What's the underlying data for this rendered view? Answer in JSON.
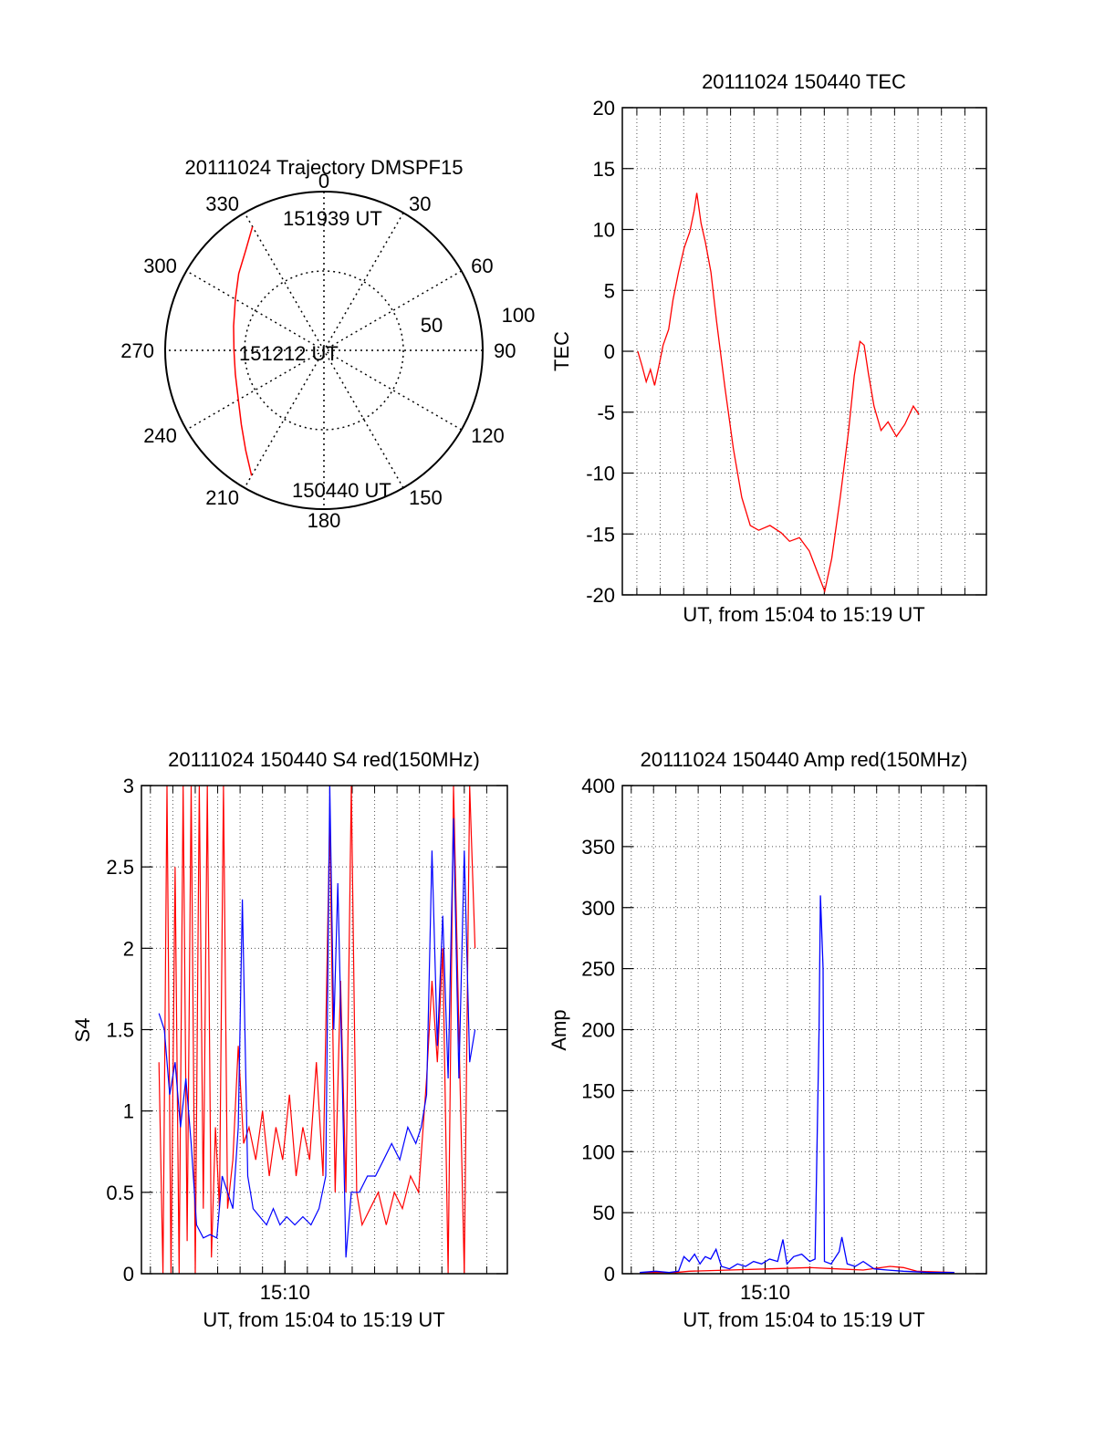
{
  "figure": {
    "colors": {
      "red": "#ff0000",
      "blue": "#0000ff",
      "axis": "#000000",
      "grid": "#000000"
    }
  },
  "chart_data": [
    {
      "id": "trajectory",
      "type": "polar",
      "title": "20111024 Trajectory DMSPF15",
      "angle_labels": [
        "0",
        "30",
        "60",
        "90",
        "120",
        "150",
        "180",
        "210",
        "240",
        "270",
        "300",
        "330"
      ],
      "radial_labels": [
        "50",
        "100"
      ],
      "annotations": [
        "151939 UT",
        "151212 UT",
        "150440 UT"
      ],
      "trajectory": [
        {
          "az": 210,
          "zen": 82
        },
        {
          "az": 218,
          "zen": 72
        },
        {
          "az": 228,
          "zen": 63
        },
        {
          "az": 240,
          "zen": 56
        },
        {
          "az": 255,
          "zen": 52
        },
        {
          "az": 270,
          "zen": 51
        },
        {
          "az": 285,
          "zen": 53
        },
        {
          "az": 300,
          "zen": 58
        },
        {
          "az": 312,
          "zen": 65
        },
        {
          "az": 322,
          "zen": 72
        },
        {
          "az": 330,
          "zen": 81
        }
      ],
      "series_color": "#ff0000"
    },
    {
      "id": "tec",
      "type": "line",
      "title": "20111024 150440 TEC",
      "xlabel": "UT, from 15:04 to 15:19 UT",
      "ylabel": "TEC",
      "xlim": [
        15.073,
        15.332
      ],
      "ylim": [
        -20,
        20
      ],
      "yticks": [
        "-20",
        "-15",
        "-10",
        "-5",
        "0",
        "5",
        "10",
        "15",
        "20"
      ],
      "ytick_values": [
        -20,
        -15,
        -10,
        -5,
        0,
        5,
        10,
        15,
        20
      ],
      "series": [
        {
          "color": "#ff0000",
          "points": [
            [
              15.084,
              0
            ],
            [
              15.087,
              -1.2
            ],
            [
              15.09,
              -2.5
            ],
            [
              15.093,
              -1.5
            ],
            [
              15.096,
              -2.8
            ],
            [
              15.099,
              -1.2
            ],
            [
              15.102,
              0.5
            ],
            [
              15.106,
              1.8
            ],
            [
              15.109,
              4.2
            ],
            [
              15.113,
              6.5
            ],
            [
              15.117,
              8.5
            ],
            [
              15.121,
              9.8
            ],
            [
              15.124,
              11.5
            ],
            [
              15.126,
              13.0
            ],
            [
              15.129,
              10.5
            ],
            [
              15.132,
              9.0
            ],
            [
              15.136,
              6.5
            ],
            [
              15.14,
              2.5
            ],
            [
              15.146,
              -3.0
            ],
            [
              15.152,
              -8.0
            ],
            [
              15.158,
              -12.0
            ],
            [
              15.164,
              -14.3
            ],
            [
              15.17,
              -14.7
            ],
            [
              15.178,
              -14.3
            ],
            [
              15.186,
              -14.9
            ],
            [
              15.192,
              -15.6
            ],
            [
              15.199,
              -15.3
            ],
            [
              15.206,
              -16.4
            ],
            [
              15.212,
              -18.2
            ],
            [
              15.217,
              -19.7
            ],
            [
              15.222,
              -17.0
            ],
            [
              15.228,
              -12.0
            ],
            [
              15.234,
              -6.5
            ],
            [
              15.238,
              -2.0
            ],
            [
              15.242,
              0.8
            ],
            [
              15.245,
              0.5
            ],
            [
              15.248,
              -1.8
            ],
            [
              15.252,
              -4.5
            ],
            [
              15.257,
              -6.5
            ],
            [
              15.262,
              -5.8
            ],
            [
              15.268,
              -7.0
            ],
            [
              15.274,
              -6.0
            ],
            [
              15.28,
              -4.5
            ],
            [
              15.284,
              -5.2
            ]
          ]
        }
      ]
    },
    {
      "id": "s4",
      "type": "line",
      "title": "20111024 150440 S4 red(150MHz)",
      "xlabel": "UT, from 15:04 to 15:19 UT",
      "ylabel": "S4",
      "xlim": [
        15.06,
        15.332
      ],
      "ylim": [
        0,
        3
      ],
      "yticks": [
        "0",
        "0.5",
        "1",
        "1.5",
        "2",
        "2.5",
        "3"
      ],
      "ytick_values": [
        0,
        0.5,
        1,
        1.5,
        2,
        2.5,
        3
      ],
      "xticks": [
        "15:10"
      ],
      "xtick_values": [
        15.1667
      ],
      "series": [
        {
          "color": "#ff0000",
          "points": [
            [
              15.073,
              1.3
            ],
            [
              15.076,
              0
            ],
            [
              15.079,
              3
            ],
            [
              15.082,
              0
            ],
            [
              15.085,
              2.5
            ],
            [
              15.088,
              0
            ],
            [
              15.091,
              3
            ],
            [
              15.094,
              0.2
            ],
            [
              15.097,
              3
            ],
            [
              15.1,
              0
            ],
            [
              15.103,
              3
            ],
            [
              15.106,
              0.4
            ],
            [
              15.109,
              3
            ],
            [
              15.112,
              0.1
            ],
            [
              15.115,
              0.9
            ],
            [
              15.118,
              0.4
            ],
            [
              15.121,
              3
            ],
            [
              15.124,
              0.4
            ],
            [
              15.128,
              0.7
            ],
            [
              15.132,
              1.4
            ],
            [
              15.136,
              0.8
            ],
            [
              15.14,
              0.9
            ],
            [
              15.145,
              0.7
            ],
            [
              15.15,
              1.0
            ],
            [
              15.155,
              0.6
            ],
            [
              15.16,
              0.9
            ],
            [
              15.165,
              0.7
            ],
            [
              15.17,
              1.1
            ],
            [
              15.175,
              0.6
            ],
            [
              15.18,
              0.9
            ],
            [
              15.185,
              0.7
            ],
            [
              15.19,
              1.3
            ],
            [
              15.195,
              0.6
            ],
            [
              15.2,
              2.8
            ],
            [
              15.204,
              0.5
            ],
            [
              15.208,
              1.8
            ],
            [
              15.212,
              0.5
            ],
            [
              15.216,
              3
            ],
            [
              15.22,
              0.5
            ],
            [
              15.224,
              0.3
            ],
            [
              15.23,
              0.4
            ],
            [
              15.236,
              0.5
            ],
            [
              15.242,
              0.3
            ],
            [
              15.248,
              0.5
            ],
            [
              15.254,
              0.4
            ],
            [
              15.26,
              0.6
            ],
            [
              15.266,
              0.5
            ],
            [
              15.272,
              1.2
            ],
            [
              15.276,
              1.8
            ],
            [
              15.28,
              1.3
            ],
            [
              15.284,
              2.0
            ],
            [
              15.288,
              0
            ],
            [
              15.292,
              3
            ],
            [
              15.296,
              1.5
            ],
            [
              15.3,
              0
            ],
            [
              15.304,
              3
            ],
            [
              15.308,
              2.0
            ]
          ]
        },
        {
          "color": "#0000ff",
          "points": [
            [
              15.073,
              1.6
            ],
            [
              15.077,
              1.5
            ],
            [
              15.081,
              1.1
            ],
            [
              15.085,
              1.3
            ],
            [
              15.089,
              0.9
            ],
            [
              15.093,
              1.2
            ],
            [
              15.097,
              0.8
            ],
            [
              15.101,
              0.3
            ],
            [
              15.106,
              0.22
            ],
            [
              15.111,
              0.24
            ],
            [
              15.116,
              0.22
            ],
            [
              15.12,
              0.6
            ],
            [
              15.124,
              0.5
            ],
            [
              15.128,
              0.4
            ],
            [
              15.132,
              0.9
            ],
            [
              15.135,
              2.3
            ],
            [
              15.139,
              0.6
            ],
            [
              15.143,
              0.4
            ],
            [
              15.148,
              0.35
            ],
            [
              15.153,
              0.3
            ],
            [
              15.158,
              0.4
            ],
            [
              15.163,
              0.3
            ],
            [
              15.168,
              0.35
            ],
            [
              15.174,
              0.3
            ],
            [
              15.18,
              0.35
            ],
            [
              15.186,
              0.3
            ],
            [
              15.192,
              0.4
            ],
            [
              15.197,
              0.6
            ],
            [
              15.2,
              3
            ],
            [
              15.203,
              1.5
            ],
            [
              15.206,
              2.4
            ],
            [
              15.209,
              1.3
            ],
            [
              15.212,
              0.1
            ],
            [
              15.216,
              0.5
            ],
            [
              15.222,
              0.5
            ],
            [
              15.228,
              0.6
            ],
            [
              15.234,
              0.6
            ],
            [
              15.24,
              0.7
            ],
            [
              15.246,
              0.8
            ],
            [
              15.252,
              0.7
            ],
            [
              15.258,
              0.9
            ],
            [
              15.264,
              0.8
            ],
            [
              15.268,
              0.9
            ],
            [
              15.272,
              1.1
            ],
            [
              15.276,
              2.6
            ],
            [
              15.28,
              1.4
            ],
            [
              15.284,
              2.2
            ],
            [
              15.288,
              1.2
            ],
            [
              15.292,
              2.8
            ],
            [
              15.296,
              1.2
            ],
            [
              15.3,
              2.6
            ],
            [
              15.304,
              1.3
            ],
            [
              15.308,
              1.5
            ]
          ]
        }
      ]
    },
    {
      "id": "amp",
      "type": "line",
      "title": "20111024 150440 Amp red(150MHz)",
      "xlabel": "UT, from 15:04 to 15:19 UT",
      "ylabel": "Amp",
      "xlim": [
        15.06,
        15.332
      ],
      "ylim": [
        0,
        400
      ],
      "yticks": [
        "0",
        "50",
        "100",
        "150",
        "200",
        "250",
        "300",
        "350",
        "400"
      ],
      "ytick_values": [
        0,
        50,
        100,
        150,
        200,
        250,
        300,
        350,
        400
      ],
      "xticks": [
        "15:10"
      ],
      "xtick_values": [
        15.1667
      ],
      "series": [
        {
          "color": "#ff0000",
          "points": [
            [
              15.073,
              1
            ],
            [
              15.1,
              1
            ],
            [
              15.11,
              2
            ],
            [
              15.14,
              3
            ],
            [
              15.17,
              4
            ],
            [
              15.2,
              5
            ],
            [
              15.22,
              4
            ],
            [
              15.24,
              3
            ],
            [
              15.26,
              6
            ],
            [
              15.27,
              5
            ],
            [
              15.28,
              2
            ],
            [
              15.308,
              1
            ]
          ]
        },
        {
          "color": "#0000ff",
          "points": [
            [
              15.073,
              1
            ],
            [
              15.085,
              2
            ],
            [
              15.095,
              1
            ],
            [
              15.102,
              2
            ],
            [
              15.106,
              14
            ],
            [
              15.11,
              10
            ],
            [
              15.114,
              16
            ],
            [
              15.118,
              8
            ],
            [
              15.122,
              14
            ],
            [
              15.126,
              12
            ],
            [
              15.13,
              20
            ],
            [
              15.134,
              6
            ],
            [
              15.14,
              4
            ],
            [
              15.146,
              8
            ],
            [
              15.152,
              6
            ],
            [
              15.158,
              10
            ],
            [
              15.164,
              8
            ],
            [
              15.17,
              12
            ],
            [
              15.176,
              10
            ],
            [
              15.18,
              28
            ],
            [
              15.183,
              8
            ],
            [
              15.188,
              14
            ],
            [
              15.194,
              16
            ],
            [
              15.2,
              10
            ],
            [
              15.204,
              12
            ],
            [
              15.207,
              200
            ],
            [
              15.208,
              310
            ],
            [
              15.21,
              250
            ],
            [
              15.211,
              10
            ],
            [
              15.216,
              8
            ],
            [
              15.222,
              18
            ],
            [
              15.224,
              30
            ],
            [
              15.228,
              8
            ],
            [
              15.234,
              6
            ],
            [
              15.24,
              10
            ],
            [
              15.248,
              4
            ],
            [
              15.258,
              3
            ],
            [
              15.27,
              2
            ],
            [
              15.29,
              1
            ],
            [
              15.308,
              1
            ]
          ]
        }
      ]
    }
  ]
}
